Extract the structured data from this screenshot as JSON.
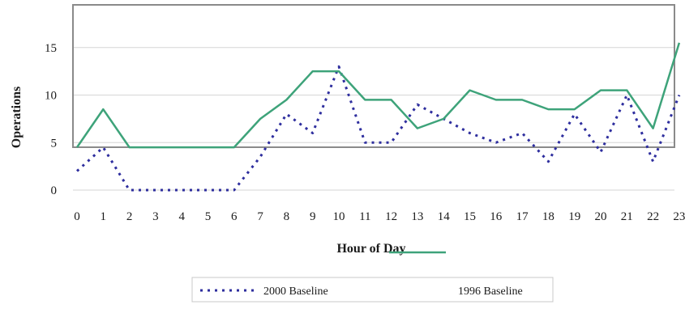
{
  "chart_data": {
    "type": "line",
    "xlabel": "Hour of Day",
    "ylabel": "Operations",
    "ylim": [
      0,
      18
    ],
    "yticks": [
      0,
      5,
      10,
      15
    ],
    "categories": [
      "0",
      "1",
      "2",
      "3",
      "4",
      "5",
      "6",
      "7",
      "8",
      "9",
      "10",
      "11",
      "12",
      "13",
      "14",
      "15",
      "16",
      "17",
      "18",
      "19",
      "20",
      "21",
      "22",
      "23"
    ],
    "grid": "horizontal",
    "legend_position": "bottom",
    "series": [
      {
        "name": "2000 Baseline",
        "style": "dotted",
        "color": "#2e2e9e",
        "values": [
          2,
          4.5,
          0,
          0,
          0,
          0,
          0,
          3.5,
          8,
          6,
          13,
          5,
          5,
          9,
          7.5,
          6,
          5,
          6,
          3,
          8,
          4,
          10,
          3,
          10
        ]
      },
      {
        "name": "1996 Baseline",
        "style": "solid",
        "color": "#3ea37a",
        "values": [
          4.5,
          8.5,
          4.5,
          4.5,
          4.5,
          4.5,
          4.5,
          7.5,
          9.5,
          12.5,
          12.5,
          9.5,
          9.5,
          6.5,
          7.5,
          10.5,
          9.5,
          9.5,
          8.5,
          8.5,
          10.5,
          10.5,
          6.5,
          15.5
        ]
      }
    ]
  }
}
